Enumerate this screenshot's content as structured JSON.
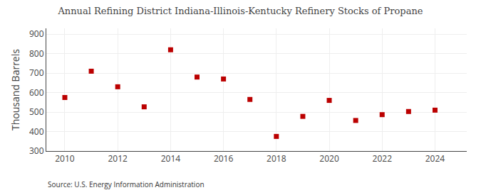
{
  "chart_data": {
    "type": "scatter",
    "title": "Annual Refining District Indiana-Illinois-Kentucky Refinery Stocks of Propane",
    "ylabel": "Thousand Barrels",
    "annotation": "Source: U.S. Energy Information Administration",
    "x": [
      2010,
      2011,
      2012,
      2013,
      2014,
      2015,
      2016,
      2017,
      2018,
      2019,
      2020,
      2021,
      2022,
      2023,
      2024
    ],
    "values": [
      575,
      710,
      630,
      527,
      820,
      680,
      670,
      565,
      375,
      478,
      560,
      457,
      487,
      503,
      510
    ],
    "color": "#bb0000",
    "marker": "square",
    "xlim": [
      2009.3,
      2025.2
    ],
    "xticks": [
      2010,
      2012,
      2014,
      2016,
      2018,
      2020,
      2022,
      2024
    ],
    "ylim": [
      300,
      930
    ],
    "yticks": [
      300,
      400,
      500,
      600,
      700,
      800,
      900
    ],
    "grid": true
  }
}
